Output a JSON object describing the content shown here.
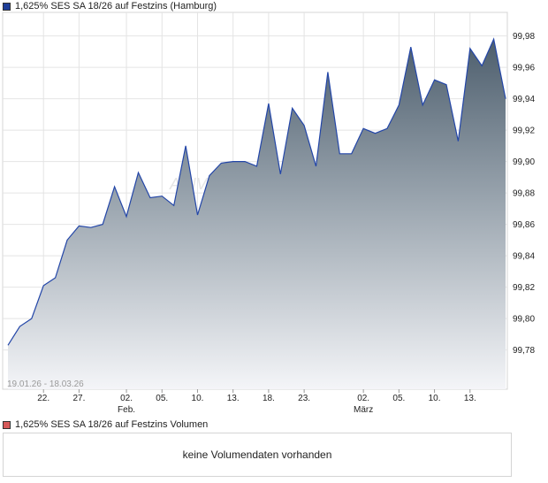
{
  "price_legend": {
    "label": "1,625% SES SA 18/26 auf Festzins (Hamburg)",
    "color": "#1f3f99"
  },
  "volume_legend": {
    "label": "1,625% SES SA 18/26 auf Festzins Volumen",
    "color": "#d65a5a"
  },
  "volume_message": "keine Volumendaten vorhanden",
  "range_text": "19.01.26 - 18.03.26",
  "watermark": "ARIVA",
  "chart_data": {
    "type": "area",
    "title": "1,625% SES SA 18/26 auf Festzins (Hamburg)",
    "ylim": [
      99.755,
      99.995
    ],
    "y_ticks": [
      99.78,
      99.8,
      99.82,
      99.84,
      99.86,
      99.88,
      99.9,
      99.92,
      99.94,
      99.96,
      99.98
    ],
    "y_tick_labels": [
      "99,78",
      "99,80",
      "99,82",
      "99,84",
      "99,86",
      "99,88",
      "99,90",
      "99,92",
      "99,94",
      "99,96",
      "99,98"
    ],
    "x_ticks": [
      {
        "label": "22.",
        "month": "",
        "index": 3
      },
      {
        "label": "27.",
        "month": "",
        "index": 6
      },
      {
        "label": "02.",
        "month": "Feb.",
        "index": 10
      },
      {
        "label": "05.",
        "month": "",
        "index": 13
      },
      {
        "label": "10.",
        "month": "",
        "index": 16
      },
      {
        "label": "13.",
        "month": "",
        "index": 19
      },
      {
        "label": "18.",
        "month": "",
        "index": 22
      },
      {
        "label": "23.",
        "month": "",
        "index": 25
      },
      {
        "label": "02.",
        "month": "März",
        "index": 30
      },
      {
        "label": "05.",
        "month": "",
        "index": 33
      },
      {
        "label": "10.",
        "month": "",
        "index": 36
      },
      {
        "label": "13.",
        "month": "",
        "index": 39
      }
    ],
    "values": [
      99.783,
      99.795,
      99.8,
      99.821,
      99.826,
      99.85,
      99.859,
      99.858,
      99.86,
      99.884,
      99.865,
      99.893,
      99.877,
      99.878,
      99.872,
      99.91,
      99.866,
      99.891,
      99.899,
      99.9,
      99.9,
      99.897,
      99.937,
      99.892,
      99.934,
      99.923,
      99.897,
      99.957,
      99.905,
      99.905,
      99.921,
      99.918,
      99.921,
      99.936,
      99.973,
      99.936,
      99.952,
      99.949,
      99.913,
      99.972,
      99.961,
      99.978,
      99.94
    ]
  }
}
